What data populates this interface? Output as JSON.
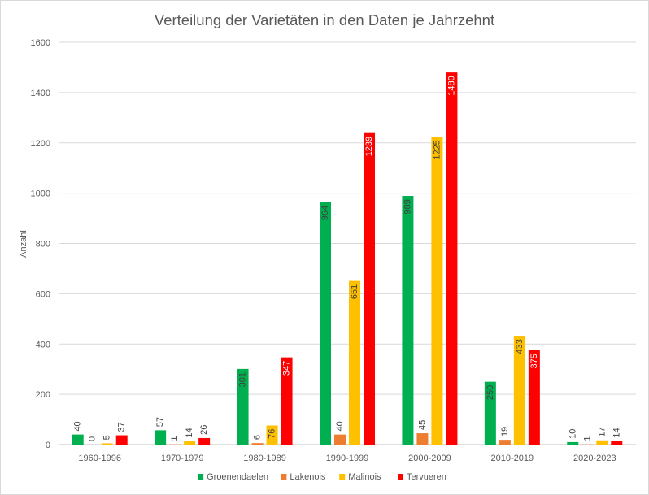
{
  "chart_data": {
    "type": "bar",
    "title": "Verteilung der Varietäten in den Daten je Jahrzehnt",
    "ylabel": "Anzahl",
    "xlabel": "",
    "ylim": [
      0,
      1600
    ],
    "yticks": [
      0,
      200,
      400,
      600,
      800,
      1000,
      1200,
      1400,
      1600
    ],
    "grid": true,
    "legend_position": "bottom",
    "categories": [
      "1960-1996",
      "1970-1979",
      "1980-1989",
      "1990-1999",
      "2000-2009",
      "2010-2019",
      "2020-2023"
    ],
    "series": [
      {
        "name": "Groenendaelen",
        "color": "#00b050",
        "values": [
          40,
          57,
          301,
          964,
          989,
          250,
          10
        ]
      },
      {
        "name": "Lakenois",
        "color": "#ed7d31",
        "values": [
          0,
          1,
          6,
          40,
          45,
          19,
          1
        ]
      },
      {
        "name": "Malinois",
        "color": "#ffc000",
        "values": [
          5,
          14,
          76,
          651,
          1225,
          433,
          17
        ]
      },
      {
        "name": "Tervueren",
        "color": "#ff0000",
        "values": [
          37,
          26,
          347,
          1239,
          1480,
          375,
          14
        ]
      }
    ]
  }
}
